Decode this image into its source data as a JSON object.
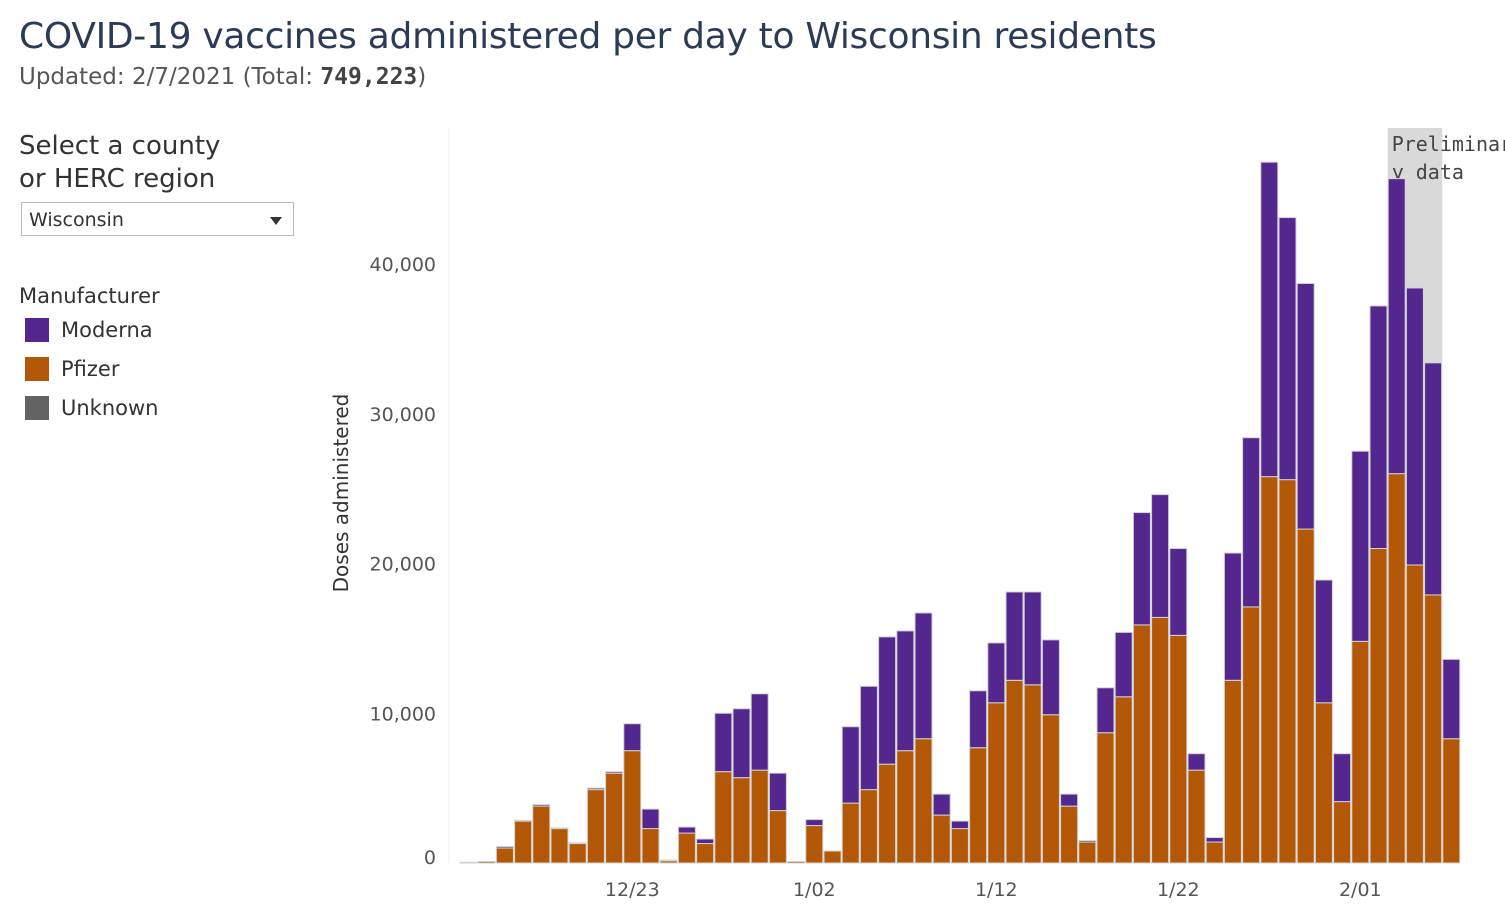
{
  "header": {
    "title": "COVID-19 vaccines administered per day to Wisconsin residents",
    "updated_label": "Updated: 2/7/2021 (Total: ",
    "total": "749,223",
    "updated_close": ")"
  },
  "filter": {
    "label_line1": "Select a county",
    "label_line2": "or HERC region",
    "selected": "Wisconsin"
  },
  "legend": {
    "title": "Manufacturer",
    "items": [
      {
        "label": "Moderna",
        "color": "#54278f"
      },
      {
        "label": "Pfizer",
        "color": "#b35806"
      },
      {
        "label": "Unknown",
        "color": "#636363"
      }
    ]
  },
  "chart_data": {
    "type": "bar",
    "stacked": true,
    "title": "",
    "xlabel": "",
    "ylabel": "Doses administered",
    "ylim": [
      0,
      48000
    ],
    "yticks": [
      0,
      10000,
      20000,
      30000,
      40000
    ],
    "ytick_labels": [
      "0",
      "10,000",
      "20,000",
      "30,000",
      "40,000"
    ],
    "xtick_labels": [
      {
        "label": "12/23",
        "index": 9
      },
      {
        "label": "1/02",
        "index": 19
      },
      {
        "label": "1/12",
        "index": 29
      },
      {
        "label": "1/22",
        "index": 39
      },
      {
        "label": "2/01",
        "index": 49
      }
    ],
    "annotation": {
      "text_line1": "Preliminar",
      "text_line2": "y data",
      "start_index": 51,
      "end_index": 53
    },
    "series": [
      {
        "name": "Pfizer",
        "color": "#b35806",
        "values": [
          50,
          100,
          1000,
          2800,
          3800,
          2300,
          1300,
          4900,
          6000,
          7500,
          2300,
          150,
          2000,
          1300,
          6100,
          5700,
          6200,
          3500,
          100,
          2500,
          800,
          4000,
          4900,
          6600,
          7500,
          8300,
          3200,
          2300,
          7700,
          10700,
          12200,
          11900,
          9900,
          3800,
          1400,
          8700,
          11100,
          15900,
          16400,
          15200,
          6200,
          1400,
          12200,
          17100,
          25800,
          25600,
          22300,
          10700,
          4100,
          14800,
          21000,
          26000,
          19900,
          17900,
          8300
        ]
      },
      {
        "name": "Moderna",
        "color": "#54278f",
        "values": [
          0,
          0,
          100,
          50,
          100,
          50,
          50,
          100,
          100,
          1800,
          1300,
          50,
          400,
          300,
          3900,
          4600,
          5100,
          2500,
          0,
          400,
          0,
          5100,
          6900,
          8500,
          8000,
          8400,
          1400,
          500,
          3800,
          4000,
          5900,
          6200,
          5000,
          800,
          100,
          3000,
          4300,
          7500,
          8200,
          5800,
          1100,
          300,
          8500,
          11300,
          21000,
          17500,
          16400,
          8200,
          3200,
          12700,
          16200,
          19700,
          18500,
          15500,
          5300
        ]
      },
      {
        "name": "Unknown",
        "color": "#636363",
        "values": [
          0,
          0,
          0,
          0,
          0,
          0,
          0,
          0,
          0,
          0,
          0,
          0,
          0,
          0,
          0,
          0,
          0,
          0,
          0,
          0,
          0,
          0,
          0,
          0,
          0,
          0,
          0,
          0,
          0,
          0,
          0,
          0,
          0,
          0,
          0,
          0,
          0,
          0,
          0,
          0,
          0,
          0,
          0,
          0,
          0,
          0,
          0,
          0,
          0,
          0,
          0,
          0,
          0,
          0,
          0
        ]
      }
    ]
  }
}
